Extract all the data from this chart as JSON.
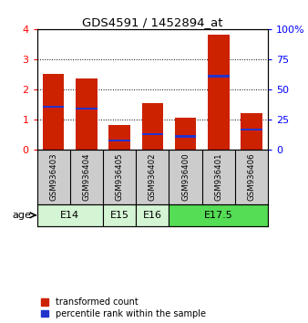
{
  "title": "GDS4591 / 1452894_at",
  "samples": [
    "GSM936403",
    "GSM936404",
    "GSM936405",
    "GSM936402",
    "GSM936400",
    "GSM936401",
    "GSM936406"
  ],
  "red_values": [
    2.5,
    2.35,
    0.8,
    1.55,
    1.05,
    3.82,
    1.22
  ],
  "blue_heights": [
    0.07,
    0.07,
    0.07,
    0.07,
    0.07,
    0.07,
    0.07
  ],
  "blue_bottoms": [
    1.38,
    1.33,
    0.27,
    0.48,
    0.4,
    2.4,
    0.63
  ],
  "age_groups": [
    {
      "label": "E14",
      "start": 0,
      "end": 2,
      "color": "#d4f5d4"
    },
    {
      "label": "E15",
      "start": 2,
      "end": 3,
      "color": "#d4f5d4"
    },
    {
      "label": "E16",
      "start": 3,
      "end": 4,
      "color": "#d4f5d4"
    },
    {
      "label": "E17.5",
      "start": 4,
      "end": 7,
      "color": "#55dd55"
    }
  ],
  "ylim_left": [
    0,
    4
  ],
  "ylim_right": [
    0,
    100
  ],
  "yticks_left": [
    0,
    1,
    2,
    3,
    4
  ],
  "yticks_right": [
    0,
    25,
    50,
    75,
    100
  ],
  "bar_color": "#cc2200",
  "blue_color": "#2233cc",
  "bar_width": 0.65,
  "bg_color": "#ffffff",
  "age_label": "age",
  "legend_red": "transformed count",
  "legend_blue": "percentile rank within the sample"
}
